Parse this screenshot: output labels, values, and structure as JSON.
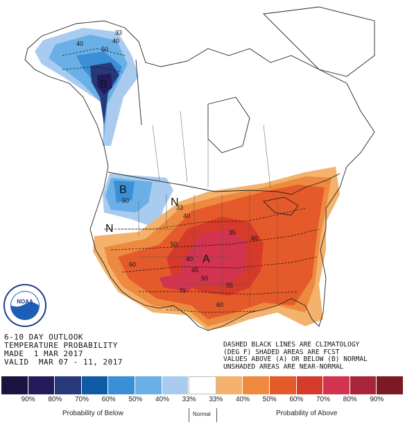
{
  "title_block": {
    "line1": "6-10 DAY OUTLOOK",
    "line2": "TEMPERATURE PROBABILITY",
    "line3": "MADE  1 MAR 2017",
    "line4": "VALID  MAR 07 - 11, 2017"
  },
  "notes": {
    "line1": "DASHED BLACK LINES ARE CLIMATOLOGY",
    "line2": "(DEG F) SHADED AREAS ARE FCST",
    "line3": "VALUES ABOVE (A) OR BELOW (B) NORMAL",
    "line4": "UNSHADED AREAS ARE NEAR-NORMAL"
  },
  "map_labels": {
    "b_alaska": "B",
    "b_northwest": "B",
    "n_montana": "N",
    "n_california": "N",
    "a_plains": "A",
    "c40_ak_a": "40",
    "c50_ak": "50",
    "c40_ak_b": "40",
    "c33_ak": "33",
    "c50_nw": "50",
    "c33_mt": "33",
    "c40_mt": "40",
    "c50_ut": "50",
    "c60_sw": "60",
    "c40_co": "40",
    "c45_ks": "45",
    "c50_ok": "50",
    "c70_nm": "70",
    "c60_tx": "60",
    "c55_ar": "55",
    "c35_ne": "35",
    "c60_oh": "60"
  },
  "legend": {
    "colors": [
      "#1c1240",
      "#241a5c",
      "#27397a",
      "#0f5ba6",
      "#3b8fd6",
      "#6ab0e6",
      "#a8cbef",
      "#ffffff",
      "#f4b26c",
      "#ee8a3f",
      "#e45a2a",
      "#d63a2a",
      "#d2334f",
      "#a8263c",
      "#7a1a22"
    ],
    "percents": [
      "90%",
      "80%",
      "70%",
      "60%",
      "50%",
      "40%",
      "33%",
      "33%",
      "40%",
      "50%",
      "60%",
      "70%",
      "80%",
      "90%"
    ],
    "below_label": "Probability of Below",
    "normal_label": "Normal",
    "above_label": "Probability of Above"
  },
  "logo": {
    "text": "NOAA",
    "ring_text": "NATIONAL OCEANIC AND ATMOSPHERIC ADMINISTRATION"
  }
}
